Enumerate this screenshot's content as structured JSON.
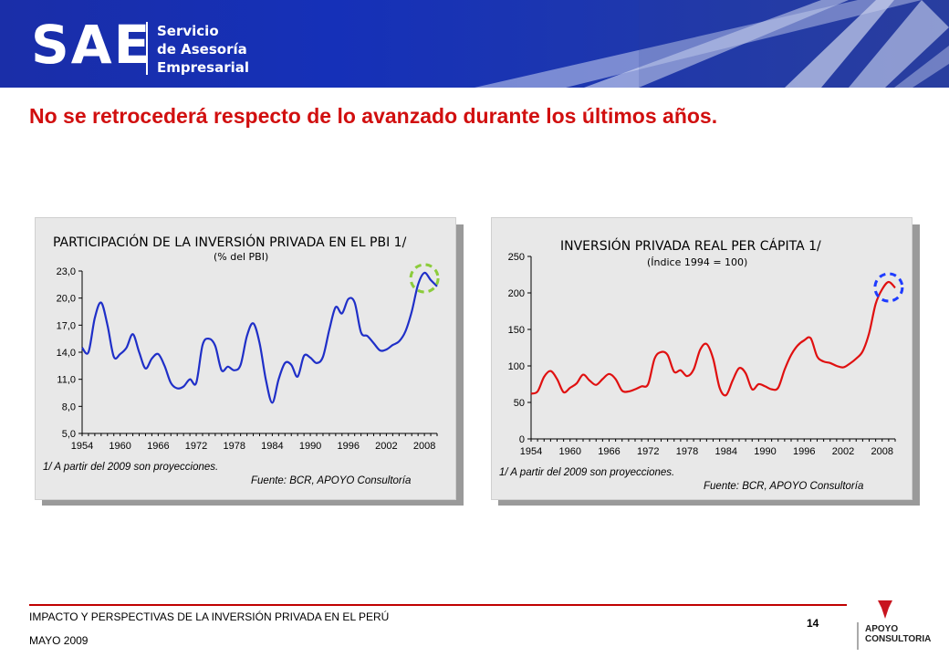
{
  "header": {
    "logo": "SAE",
    "logo_lines": [
      "Servicio",
      "de Asesoría",
      "Empresarial"
    ]
  },
  "slide_title": "No se retrocederá respecto de lo avanzado durante los últimos años.",
  "charts": [
    {
      "title": "PARTICIPACIÓN DE LA INVERSIÓN PRIVADA EN EL PBI 1/",
      "subtitle": "(% del PBI)",
      "footnote": "1/ A partir del 2009 son proyecciones.",
      "source": "Fuente: BCR, APOYO Consultoría",
      "y_tick_labels": [
        "23,0",
        "20,0",
        "17,0",
        "14,0",
        "11,0",
        "8,0",
        "5,0"
      ],
      "x_tick_labels": [
        "1954",
        "1960",
        "1966",
        "1972",
        "1978",
        "1984",
        "1990",
        "1996",
        "2002",
        "2008"
      ],
      "highlight_color": "#8ccc3c"
    },
    {
      "title": "INVERSIÓN PRIVADA REAL PER CÁPITA 1/",
      "subtitle": "(Índice 1994 = 100)",
      "footnote": "1/ A partir del 2009 son proyecciones.",
      "source": "Fuente: BCR, APOYO Consultoría",
      "y_tick_labels": [
        "250",
        "200",
        "150",
        "100",
        "50",
        "0"
      ],
      "x_tick_labels": [
        "1954",
        "1960",
        "1966",
        "1972",
        "1978",
        "1984",
        "1990",
        "1996",
        "2002",
        "2008"
      ],
      "highlight_color": "#1f3cff"
    }
  ],
  "chart_data": [
    {
      "type": "line",
      "color": "#1f2fc8",
      "ylim": [
        5,
        23
      ],
      "xlim": [
        1954,
        2010
      ],
      "x": [
        1954,
        1955,
        1956,
        1957,
        1958,
        1959,
        1960,
        1961,
        1962,
        1963,
        1964,
        1965,
        1966,
        1967,
        1968,
        1969,
        1970,
        1971,
        1972,
        1973,
        1974,
        1975,
        1976,
        1977,
        1978,
        1979,
        1980,
        1981,
        1982,
        1983,
        1984,
        1985,
        1986,
        1987,
        1988,
        1989,
        1990,
        1991,
        1992,
        1993,
        1994,
        1995,
        1996,
        1997,
        1998,
        1999,
        2000,
        2001,
        2002,
        2003,
        2004,
        2005,
        2006,
        2007,
        2008,
        2009,
        2010
      ],
      "values": [
        14.5,
        14.0,
        17.8,
        19.5,
        17.0,
        13.5,
        13.8,
        14.5,
        16.0,
        14.0,
        12.2,
        13.3,
        13.8,
        12.5,
        10.6,
        10.0,
        10.2,
        11.0,
        10.6,
        14.8,
        15.5,
        14.7,
        12.0,
        12.4,
        12.0,
        12.6,
        15.8,
        17.2,
        15.0,
        10.9,
        8.4,
        11.0,
        12.8,
        12.6,
        11.3,
        13.6,
        13.4,
        12.8,
        13.5,
        16.5,
        19.0,
        18.3,
        19.9,
        19.5,
        16.2,
        15.8,
        15.0,
        14.2,
        14.3,
        14.8,
        15.2,
        16.3,
        18.5,
        21.5,
        22.8,
        22.0,
        21.3
      ]
    },
    {
      "type": "line",
      "color": "#e01010",
      "ylim": [
        0,
        250
      ],
      "xlim": [
        1954,
        2010
      ],
      "x": [
        1954,
        1955,
        1956,
        1957,
        1958,
        1959,
        1960,
        1961,
        1962,
        1963,
        1964,
        1965,
        1966,
        1967,
        1968,
        1969,
        1970,
        1971,
        1972,
        1973,
        1974,
        1975,
        1976,
        1977,
        1978,
        1979,
        1980,
        1981,
        1982,
        1983,
        1984,
        1985,
        1986,
        1987,
        1988,
        1989,
        1990,
        1991,
        1992,
        1993,
        1994,
        1995,
        1996,
        1997,
        1998,
        1999,
        2000,
        2001,
        2002,
        2003,
        2004,
        2005,
        2006,
        2007,
        2008,
        2009,
        2010
      ],
      "values": [
        62,
        65,
        85,
        93,
        82,
        64,
        70,
        76,
        88,
        80,
        74,
        82,
        89,
        82,
        66,
        65,
        68,
        72,
        75,
        110,
        119,
        115,
        92,
        94,
        86,
        95,
        122,
        130,
        110,
        70,
        60,
        80,
        97,
        90,
        68,
        75,
        72,
        68,
        70,
        95,
        115,
        128,
        135,
        138,
        113,
        106,
        104,
        100,
        98,
        103,
        110,
        120,
        145,
        185,
        205,
        215,
        207
      ]
    }
  ],
  "footer": {
    "line1": "IMPACTO Y PERSPECTIVAS DE LA INVERSIÓN PRIVADA EN EL PERÚ",
    "line2": "MAYO 2009",
    "page_number": "14",
    "brand_line1": "APOYO",
    "brand_line2": "CONSULTORIA"
  }
}
